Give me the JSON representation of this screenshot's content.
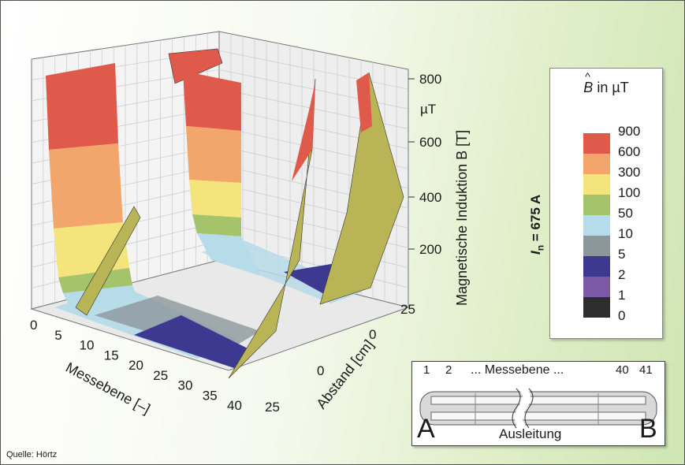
{
  "colors": {
    "band_900": "#e05a4c",
    "band_600": "#f3a66b",
    "band_300": "#f3e47c",
    "band_100": "#a4c36b",
    "band_50": "#b6dbe9",
    "band_10": "#8c979b",
    "band_5": "#3d3990",
    "band_2": "#7b59a6",
    "band_1": "#2d2d2d",
    "spike": "#b9b455"
  },
  "chart_data": {
    "type": "surface3d",
    "title": "",
    "xlabel": "Messebene [–]",
    "ylabel": "Abstand [cm]",
    "zlabel": "Magnetische Induktion B [T]",
    "z_unit_tick": "µT",
    "x_ticks": [
      "0",
      "5",
      "10",
      "15",
      "20",
      "25",
      "30",
      "35",
      "40"
    ],
    "y_ticks": [
      "25",
      "0",
      "0",
      "25"
    ],
    "z_ticks": [
      "800",
      "600",
      "400",
      "200"
    ],
    "legend": {
      "title_symbol": "B",
      "title_rest": " in µT",
      "current_label": "I",
      "current_sub": "n",
      "current_value": " = 675 A",
      "levels": [
        "900",
        "600",
        "300",
        "100",
        "50",
        "10",
        "5",
        "2",
        "1",
        "0"
      ],
      "level_colors": [
        "band_900",
        "band_600",
        "band_300",
        "band_100",
        "band_50",
        "band_10",
        "band_5",
        "band_2",
        "band_1"
      ]
    },
    "z_range": [
      0,
      900
    ],
    "x_range": [
      0,
      40
    ],
    "y_range": [
      -25,
      25
    ],
    "grid": true,
    "legend_position": "right"
  },
  "inset": {
    "label_1": "1",
    "label_2": "2",
    "label_middle": "... Messebene ...",
    "label_40": "40",
    "label_41": "41",
    "label_a": "A",
    "label_b": "B",
    "label_bottom": "Ausleitung"
  },
  "source": "Quelle: Hörtz"
}
